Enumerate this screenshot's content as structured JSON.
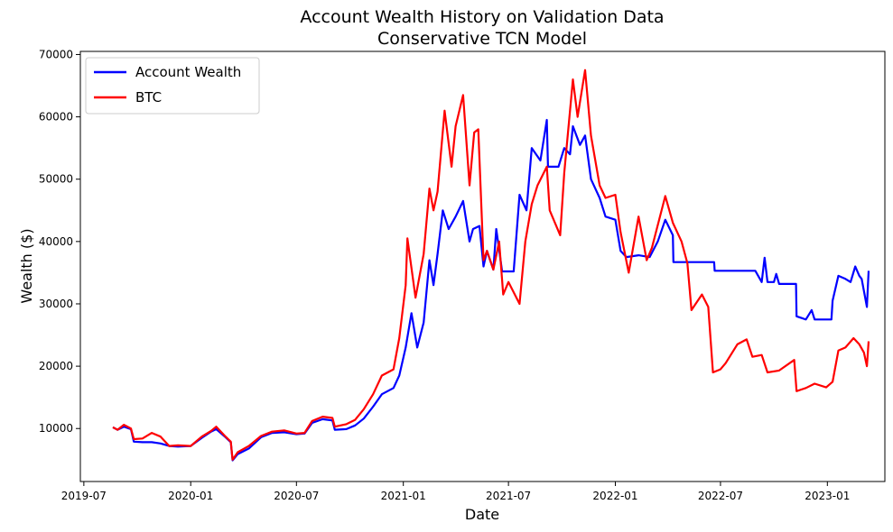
{
  "chart_data": {
    "type": "line",
    "title": "Account Wealth History on Validation Data",
    "subtitle": "Conservative TCN Model",
    "xlabel": "Date",
    "ylabel": "Wealth ($)",
    "xlim": [
      "2019-06-25",
      "2023-04-10"
    ],
    "ylim": [
      1500,
      70500
    ],
    "x_ticks": [
      "2019-07",
      "2020-01",
      "2020-07",
      "2021-01",
      "2021-07",
      "2022-01",
      "2022-07",
      "2023-01"
    ],
    "y_ticks": [
      10000,
      20000,
      30000,
      40000,
      50000,
      60000,
      70000
    ],
    "grid": false,
    "legend_position": "upper-left",
    "series": [
      {
        "name": "Account Wealth",
        "color": "#0000ff",
        "points": [
          [
            "2019-08-20",
            10200
          ],
          [
            "2019-08-28",
            9800
          ],
          [
            "2019-09-08",
            10300
          ],
          [
            "2019-09-20",
            9900
          ],
          [
            "2019-09-25",
            7900
          ],
          [
            "2019-10-10",
            7800
          ],
          [
            "2019-10-26",
            7800
          ],
          [
            "2019-11-10",
            7600
          ],
          [
            "2019-11-25",
            7200
          ],
          [
            "2019-12-10",
            7100
          ],
          [
            "2020-01-01",
            7200
          ],
          [
            "2020-01-20",
            8500
          ],
          [
            "2020-02-05",
            9500
          ],
          [
            "2020-02-14",
            9900
          ],
          [
            "2020-03-01",
            8600
          ],
          [
            "2020-03-10",
            7800
          ],
          [
            "2020-03-13",
            4900
          ],
          [
            "2020-03-22",
            5900
          ],
          [
            "2020-04-10",
            6800
          ],
          [
            "2020-05-01",
            8600
          ],
          [
            "2020-05-20",
            9300
          ],
          [
            "2020-06-10",
            9400
          ],
          [
            "2020-07-01",
            9100
          ],
          [
            "2020-07-15",
            9200
          ],
          [
            "2020-07-28",
            10900
          ],
          [
            "2020-08-15",
            11500
          ],
          [
            "2020-09-01",
            11300
          ],
          [
            "2020-09-05",
            9800
          ],
          [
            "2020-09-25",
            9900
          ],
          [
            "2020-10-10",
            10500
          ],
          [
            "2020-10-25",
            11600
          ],
          [
            "2020-11-10",
            13500
          ],
          [
            "2020-11-25",
            15500
          ],
          [
            "2020-12-15",
            16500
          ],
          [
            "2020-12-25",
            18500
          ],
          [
            "2021-01-05",
            23000
          ],
          [
            "2021-01-15",
            28500
          ],
          [
            "2021-01-25",
            23000
          ],
          [
            "2021-02-05",
            27000
          ],
          [
            "2021-02-15",
            37000
          ],
          [
            "2021-02-22",
            33000
          ],
          [
            "2021-03-01",
            38000
          ],
          [
            "2021-03-10",
            45000
          ],
          [
            "2021-03-20",
            42000
          ],
          [
            "2021-04-01",
            44000
          ],
          [
            "2021-04-14",
            46500
          ],
          [
            "2021-04-25",
            40000
          ],
          [
            "2021-05-01",
            42000
          ],
          [
            "2021-05-12",
            42500
          ],
          [
            "2021-05-19",
            36000
          ],
          [
            "2021-05-25",
            38500
          ],
          [
            "2021-06-05",
            35500
          ],
          [
            "2021-06-10",
            42000
          ],
          [
            "2021-06-20",
            35200
          ],
          [
            "2021-07-10",
            35200
          ],
          [
            "2021-07-20",
            47500
          ],
          [
            "2021-08-01",
            45000
          ],
          [
            "2021-08-10",
            55000
          ],
          [
            "2021-08-25",
            53000
          ],
          [
            "2021-09-05",
            59500
          ],
          [
            "2021-09-07",
            52000
          ],
          [
            "2021-09-25",
            52000
          ],
          [
            "2021-10-05",
            55000
          ],
          [
            "2021-10-15",
            54000
          ],
          [
            "2021-10-20",
            58500
          ],
          [
            "2021-11-01",
            55500
          ],
          [
            "2021-11-10",
            57000
          ],
          [
            "2021-11-20",
            50000
          ],
          [
            "2021-12-05",
            47000
          ],
          [
            "2021-12-15",
            44000
          ],
          [
            "2022-01-01",
            43500
          ],
          [
            "2022-01-10",
            38500
          ],
          [
            "2022-01-20",
            37500
          ],
          [
            "2022-02-10",
            37800
          ],
          [
            "2022-03-01",
            37500
          ],
          [
            "2022-03-15",
            40000
          ],
          [
            "2022-03-28",
            43500
          ],
          [
            "2022-04-10",
            41000
          ],
          [
            "2022-04-11",
            36700
          ],
          [
            "2022-06-20",
            36700
          ],
          [
            "2022-06-21",
            35300
          ],
          [
            "2022-08-30",
            35300
          ],
          [
            "2022-09-10",
            33500
          ],
          [
            "2022-09-15",
            37400
          ],
          [
            "2022-09-20",
            33500
          ],
          [
            "2022-10-01",
            33500
          ],
          [
            "2022-10-05",
            34800
          ],
          [
            "2022-10-10",
            33200
          ],
          [
            "2022-11-08",
            33200
          ],
          [
            "2022-11-09",
            28000
          ],
          [
            "2022-11-25",
            27500
          ],
          [
            "2022-12-05",
            29000
          ],
          [
            "2022-12-10",
            27500
          ],
          [
            "2023-01-08",
            27500
          ],
          [
            "2023-01-10",
            30500
          ],
          [
            "2023-01-20",
            34500
          ],
          [
            "2023-02-01",
            34000
          ],
          [
            "2023-02-10",
            33500
          ],
          [
            "2023-02-18",
            36000
          ],
          [
            "2023-02-25",
            34500
          ],
          [
            "2023-03-01",
            34000
          ],
          [
            "2023-03-10",
            29500
          ],
          [
            "2023-03-13",
            35300
          ]
        ]
      },
      {
        "name": "BTC",
        "color": "#ff0000",
        "points": [
          [
            "2019-08-20",
            10200
          ],
          [
            "2019-08-28",
            9800
          ],
          [
            "2019-09-08",
            10600
          ],
          [
            "2019-09-20",
            10000
          ],
          [
            "2019-09-25",
            8300
          ],
          [
            "2019-10-10",
            8400
          ],
          [
            "2019-10-26",
            9300
          ],
          [
            "2019-11-10",
            8700
          ],
          [
            "2019-11-25",
            7200
          ],
          [
            "2019-12-10",
            7300
          ],
          [
            "2020-01-01",
            7200
          ],
          [
            "2020-01-20",
            8700
          ],
          [
            "2020-02-05",
            9600
          ],
          [
            "2020-02-14",
            10300
          ],
          [
            "2020-03-01",
            8700
          ],
          [
            "2020-03-10",
            7900
          ],
          [
            "2020-03-13",
            5000
          ],
          [
            "2020-03-22",
            6200
          ],
          [
            "2020-04-10",
            7200
          ],
          [
            "2020-05-01",
            8800
          ],
          [
            "2020-05-20",
            9500
          ],
          [
            "2020-06-10",
            9700
          ],
          [
            "2020-07-01",
            9200
          ],
          [
            "2020-07-15",
            9300
          ],
          [
            "2020-07-28",
            11200
          ],
          [
            "2020-08-15",
            11900
          ],
          [
            "2020-09-01",
            11700
          ],
          [
            "2020-09-05",
            10300
          ],
          [
            "2020-09-25",
            10700
          ],
          [
            "2020-10-10",
            11400
          ],
          [
            "2020-10-25",
            13100
          ],
          [
            "2020-11-10",
            15500
          ],
          [
            "2020-11-25",
            18500
          ],
          [
            "2020-12-15",
            19500
          ],
          [
            "2020-12-25",
            24500
          ],
          [
            "2021-01-05",
            33000
          ],
          [
            "2021-01-08",
            40500
          ],
          [
            "2021-01-22",
            31000
          ],
          [
            "2021-02-05",
            38000
          ],
          [
            "2021-02-15",
            48500
          ],
          [
            "2021-02-22",
            45000
          ],
          [
            "2021-03-01",
            48000
          ],
          [
            "2021-03-13",
            61000
          ],
          [
            "2021-03-25",
            52000
          ],
          [
            "2021-04-01",
            58500
          ],
          [
            "2021-04-14",
            63500
          ],
          [
            "2021-04-25",
            49000
          ],
          [
            "2021-05-03",
            57500
          ],
          [
            "2021-05-10",
            58000
          ],
          [
            "2021-05-19",
            37000
          ],
          [
            "2021-05-25",
            38500
          ],
          [
            "2021-06-05",
            35500
          ],
          [
            "2021-06-15",
            40000
          ],
          [
            "2021-06-22",
            31500
          ],
          [
            "2021-07-01",
            33500
          ],
          [
            "2021-07-20",
            30000
          ],
          [
            "2021-07-30",
            40000
          ],
          [
            "2021-08-10",
            46000
          ],
          [
            "2021-08-20",
            49000
          ],
          [
            "2021-09-05",
            52000
          ],
          [
            "2021-09-10",
            45000
          ],
          [
            "2021-09-28",
            41000
          ],
          [
            "2021-10-05",
            51000
          ],
          [
            "2021-10-20",
            66000
          ],
          [
            "2021-10-28",
            60000
          ],
          [
            "2021-11-10",
            67500
          ],
          [
            "2021-11-20",
            57000
          ],
          [
            "2021-12-05",
            49000
          ],
          [
            "2021-12-15",
            47000
          ],
          [
            "2022-01-01",
            47500
          ],
          [
            "2022-01-10",
            41500
          ],
          [
            "2022-01-24",
            35000
          ],
          [
            "2022-02-10",
            44000
          ],
          [
            "2022-02-24",
            37000
          ],
          [
            "2022-03-05",
            39000
          ],
          [
            "2022-03-28",
            47300
          ],
          [
            "2022-04-10",
            43000
          ],
          [
            "2022-04-25",
            40000
          ],
          [
            "2022-05-05",
            36500
          ],
          [
            "2022-05-12",
            29000
          ],
          [
            "2022-05-30",
            31500
          ],
          [
            "2022-06-10",
            29500
          ],
          [
            "2022-06-18",
            19000
          ],
          [
            "2022-07-01",
            19500
          ],
          [
            "2022-07-10",
            20500
          ],
          [
            "2022-07-30",
            23500
          ],
          [
            "2022-08-15",
            24300
          ],
          [
            "2022-08-25",
            21500
          ],
          [
            "2022-09-10",
            21800
          ],
          [
            "2022-09-20",
            19000
          ],
          [
            "2022-10-10",
            19300
          ],
          [
            "2022-11-05",
            21000
          ],
          [
            "2022-11-09",
            16000
          ],
          [
            "2022-11-25",
            16500
          ],
          [
            "2022-12-10",
            17200
          ],
          [
            "2022-12-30",
            16600
          ],
          [
            "2023-01-10",
            17500
          ],
          [
            "2023-01-20",
            22500
          ],
          [
            "2023-02-01",
            23000
          ],
          [
            "2023-02-15",
            24500
          ],
          [
            "2023-02-25",
            23500
          ],
          [
            "2023-03-05",
            22200
          ],
          [
            "2023-03-10",
            20000
          ],
          [
            "2023-03-13",
            24000
          ]
        ]
      }
    ]
  }
}
